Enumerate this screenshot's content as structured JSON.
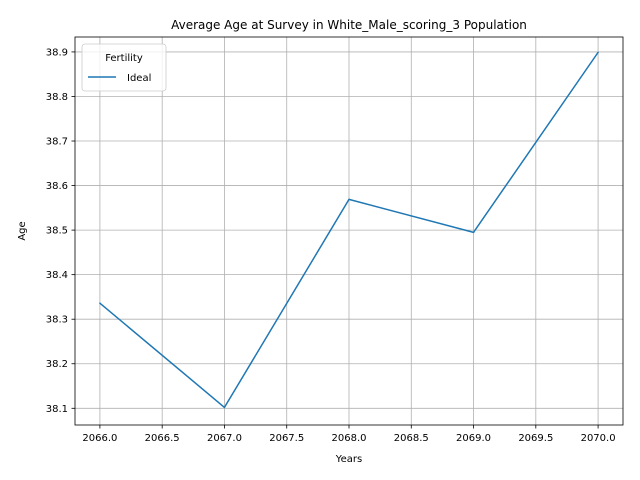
{
  "chart_data": {
    "type": "line",
    "title": "Average Age at Survey in White_Male_scoring_3 Population",
    "xlabel": "Years",
    "ylabel": "Age",
    "x": [
      2066,
      2067,
      2068,
      2069,
      2070
    ],
    "series": [
      {
        "name": "Ideal",
        "values": [
          38.336,
          38.102,
          38.569,
          38.495,
          38.899
        ],
        "color": "#1f77b4"
      }
    ],
    "xlim": [
      2065.8,
      2070.2
    ],
    "ylim": [
      38.0625,
      38.9335
    ],
    "xticks": [
      2066.0,
      2066.5,
      2067.0,
      2067.5,
      2068.0,
      2068.5,
      2069.0,
      2069.5,
      2070.0
    ],
    "xtick_labels": [
      "2066.0",
      "2066.5",
      "2067.0",
      "2067.5",
      "2068.0",
      "2068.5",
      "2069.0",
      "2069.5",
      "2070.0"
    ],
    "yticks": [
      38.1,
      38.2,
      38.3,
      38.4,
      38.5,
      38.6,
      38.7,
      38.8,
      38.9
    ],
    "ytick_labels": [
      "38.1",
      "38.2",
      "38.3",
      "38.4",
      "38.5",
      "38.6",
      "38.7",
      "38.8",
      "38.9"
    ],
    "grid": true,
    "legend": {
      "title": "Fertility",
      "placement": "top-left"
    }
  }
}
